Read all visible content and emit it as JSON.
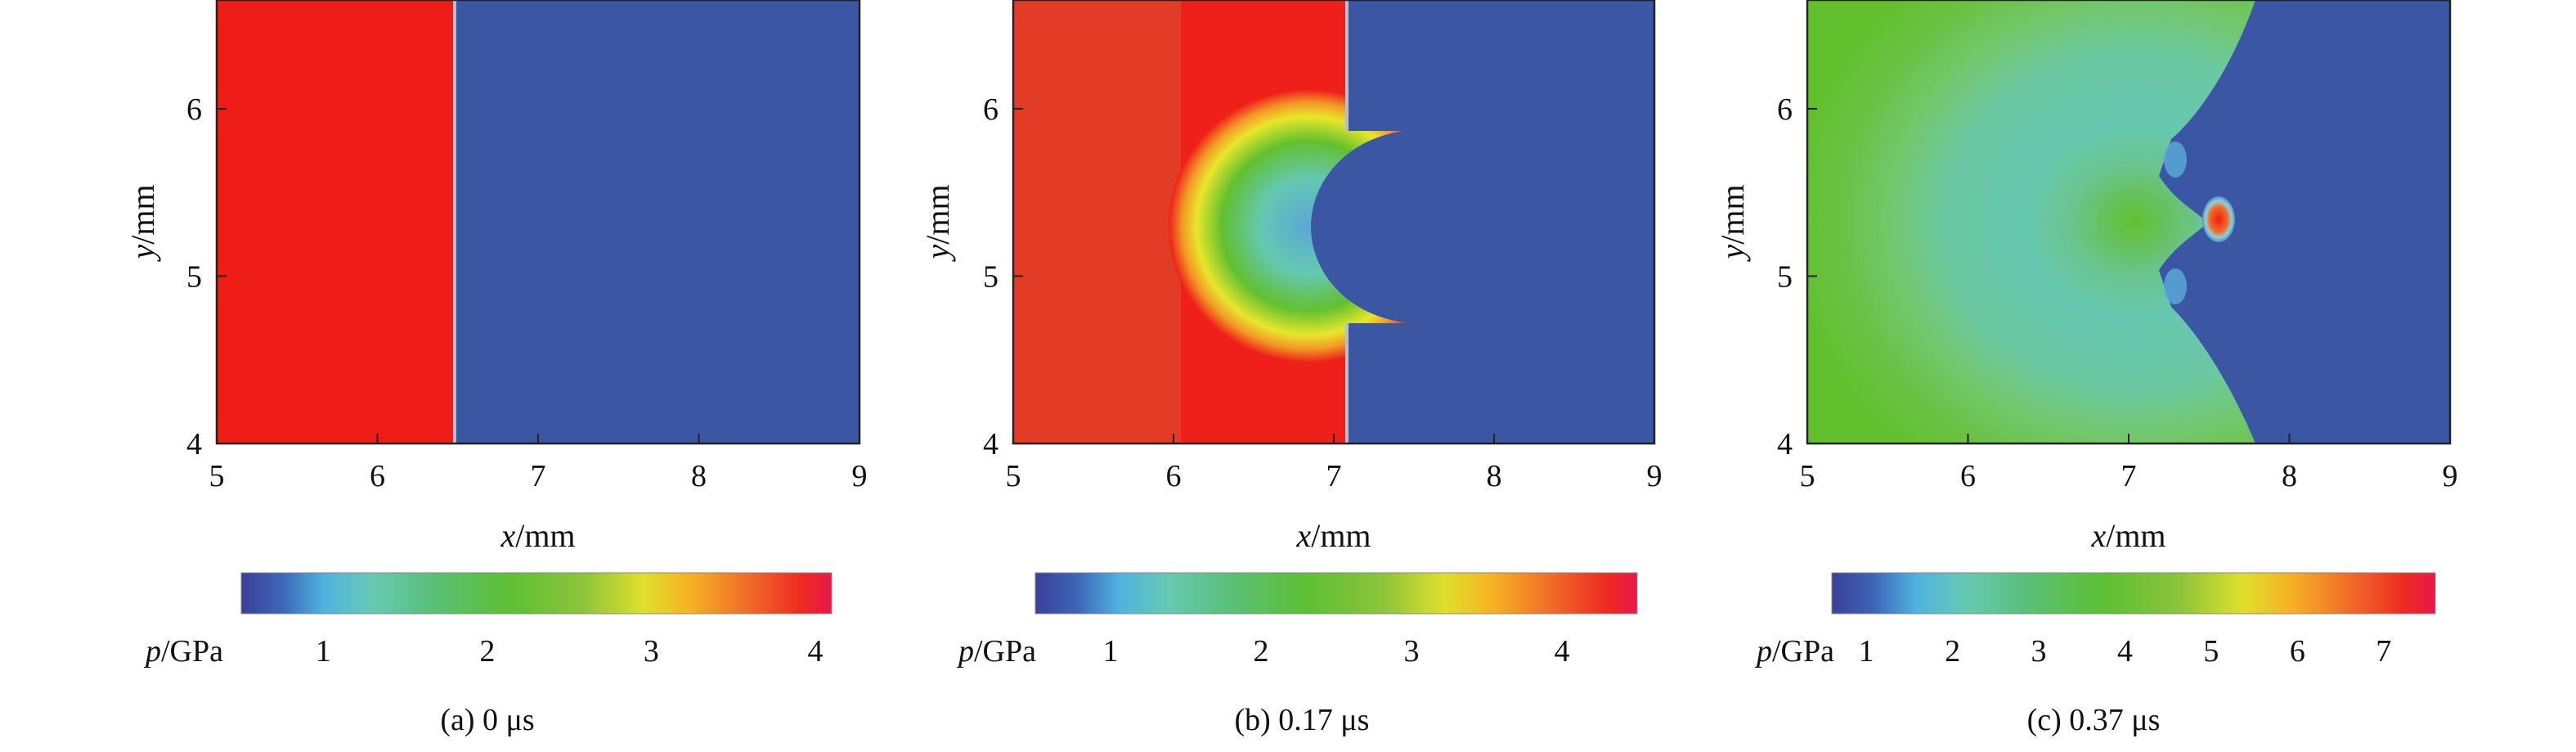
{
  "colors": {
    "high_red": "#ee1c17",
    "left_red_b": "#e23b26",
    "red_b": "#ef1f1a",
    "blue_bg": "#3b56a3",
    "green": "#62c02f",
    "teal": "#64c8b0",
    "yellow": "#e8e62a",
    "white_bg": "#ffffff"
  },
  "axes": {
    "x_ticks": [
      "5",
      "6",
      "7",
      "8",
      "9"
    ],
    "y_ticks": [
      "4",
      "5",
      "6"
    ],
    "x_label_var": "x",
    "x_label_unit": "/mm",
    "y_label_var": "y",
    "y_label_unit": "/mm",
    "xlim": [
      5,
      9
    ],
    "ylim": [
      4,
      6.65
    ]
  },
  "colorbar": {
    "label_var": "p",
    "label_unit": "/GPa"
  },
  "panels": [
    {
      "id": "a",
      "caption": "(a) 0 μs",
      "colorbar_ticks": [
        {
          "value": 1,
          "label": "1"
        },
        {
          "value": 2,
          "label": "2"
        },
        {
          "value": 3,
          "label": "3"
        },
        {
          "value": 4,
          "label": "4"
        }
      ],
      "colorbar_range": [
        0.5,
        4.1
      ]
    },
    {
      "id": "b",
      "caption": "(b) 0.17 μs",
      "colorbar_ticks": [
        {
          "value": 1,
          "label": "1"
        },
        {
          "value": 2,
          "label": "2"
        },
        {
          "value": 3,
          "label": "3"
        },
        {
          "value": 4,
          "label": "4"
        }
      ],
      "colorbar_range": [
        0.5,
        4.5
      ]
    },
    {
      "id": "c",
      "caption": "(c) 0.37 μs",
      "colorbar_ticks": [
        {
          "value": 1,
          "label": "1"
        },
        {
          "value": 2,
          "label": "2"
        },
        {
          "value": 3,
          "label": "3"
        },
        {
          "value": 4,
          "label": "4"
        },
        {
          "value": 5,
          "label": "5"
        },
        {
          "value": 6,
          "label": "6"
        },
        {
          "value": 7,
          "label": "7"
        }
      ],
      "colorbar_range": [
        0.6,
        7.6
      ]
    }
  ]
}
